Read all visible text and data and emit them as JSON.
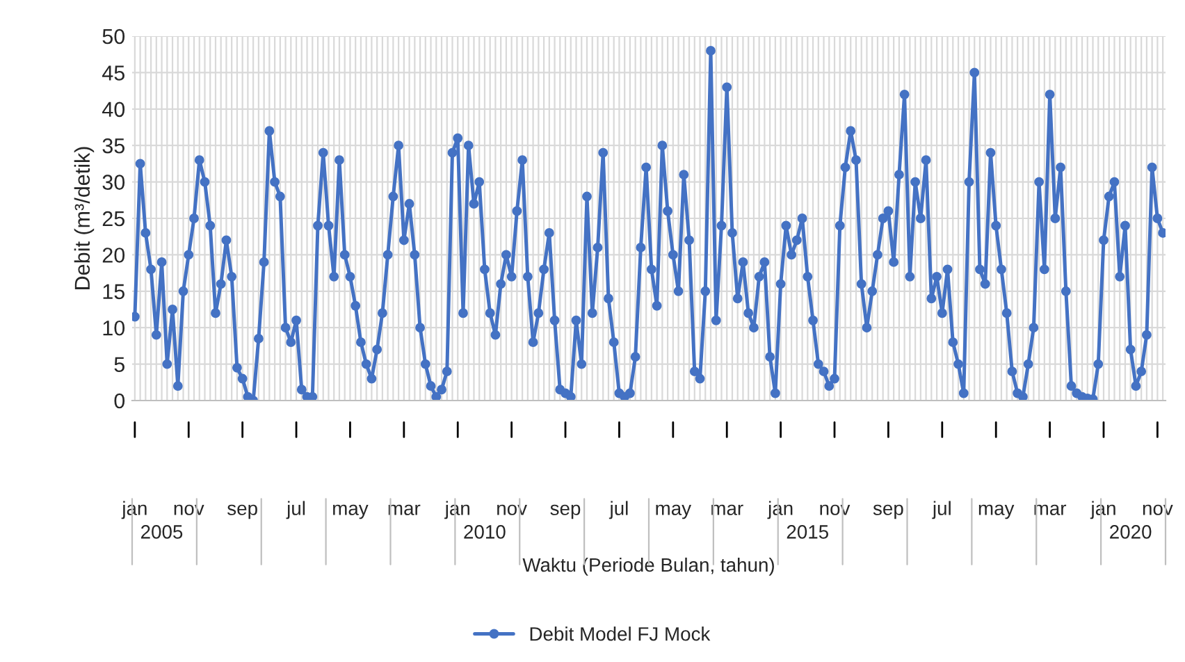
{
  "chart_data": {
    "type": "line",
    "xlabel": "Waktu (Periode Bulan, tahun)",
    "ylabel": "Debit (m³/detik)",
    "categories": [
      "jan",
      null,
      null,
      null,
      null,
      null,
      null,
      null,
      null,
      null,
      "nov",
      null,
      null,
      null,
      null,
      null,
      null,
      null,
      null,
      null,
      "sep",
      null,
      null,
      null,
      null,
      null,
      null,
      null,
      null,
      null,
      "jul",
      null,
      null,
      null,
      null,
      null,
      null,
      null,
      null,
      null,
      "may",
      null,
      null,
      null,
      null,
      null,
      null,
      null,
      null,
      null,
      "mar",
      null,
      null,
      null,
      null,
      null,
      null,
      null,
      null,
      null,
      "jan",
      null,
      null,
      null,
      null,
      null,
      null,
      null,
      null,
      null,
      "nov",
      null,
      null,
      null,
      null,
      null,
      null,
      null,
      null,
      null,
      "sep",
      null,
      null,
      null,
      null,
      null,
      null,
      null,
      null,
      null,
      "jul",
      null,
      null,
      null,
      null,
      null,
      null,
      null,
      null,
      null,
      "may",
      null,
      null,
      null,
      null,
      null,
      null,
      null,
      null,
      null,
      "mar",
      null,
      null,
      null,
      null,
      null,
      null,
      null,
      null,
      null,
      "jan",
      null,
      null,
      null,
      null,
      null,
      null,
      null,
      null,
      null,
      "nov",
      null,
      null,
      null,
      null,
      null,
      null,
      null,
      null,
      null,
      "sep",
      null,
      null,
      null,
      null,
      null,
      null,
      null,
      null,
      null,
      "jul",
      null,
      null,
      null,
      null,
      null,
      null,
      null,
      null,
      null,
      "may",
      null,
      null,
      null,
      null,
      null,
      null,
      null,
      null,
      null,
      "mar",
      null,
      null,
      null,
      null,
      null,
      null,
      null,
      null,
      null,
      "jan",
      null,
      null,
      null,
      null,
      null,
      null,
      null,
      null,
      null,
      "nov",
      null
    ],
    "series": [
      {
        "name": "Debit Model FJ Mock",
        "color": "#4472c4",
        "values": [
          11.5,
          32.5,
          23,
          18,
          9,
          19,
          5,
          12.5,
          2,
          15,
          20,
          25,
          33,
          30,
          24,
          12,
          16,
          22,
          17,
          4.5,
          3,
          0.5,
          0,
          8.5,
          19,
          37,
          30,
          28,
          10,
          8,
          11,
          1.5,
          0.5,
          0.5,
          24,
          34,
          24,
          17,
          33,
          20,
          17,
          13,
          8,
          5,
          3,
          7,
          12,
          20,
          28,
          35,
          22,
          27,
          20,
          10,
          5,
          2,
          0.5,
          1.5,
          4,
          34,
          36,
          12,
          35,
          27,
          30,
          18,
          12,
          9,
          16,
          20,
          17,
          26,
          33,
          17,
          8,
          12,
          18,
          23,
          11,
          1.5,
          1,
          0.5,
          11,
          5,
          28,
          12,
          21,
          34,
          14,
          8,
          1,
          0.5,
          1,
          6,
          21,
          32,
          18,
          13,
          35,
          26,
          20,
          15,
          31,
          22,
          4,
          3,
          15,
          48,
          11,
          24,
          43,
          23,
          14,
          19,
          12,
          10,
          17,
          19,
          6,
          1,
          16,
          24,
          20,
          22,
          25,
          17,
          11,
          5,
          4,
          2,
          3,
          24,
          32,
          37,
          33,
          16,
          10,
          15,
          20,
          25,
          26,
          19,
          31,
          42,
          17,
          30,
          25,
          33,
          14,
          17,
          12,
          18,
          8,
          5,
          1,
          30,
          45,
          18,
          16,
          34,
          24,
          18,
          12,
          4,
          1,
          0.5,
          5,
          10,
          30,
          18,
          42,
          25,
          32,
          15,
          2,
          1,
          0.5,
          0.3,
          0.2,
          5,
          22,
          28,
          30,
          17,
          24,
          7,
          2,
          4,
          9,
          32,
          25,
          23
        ]
      }
    ],
    "ylim": [
      0,
      50
    ],
    "yticks": [
      0,
      5,
      10,
      15,
      20,
      25,
      30,
      35,
      40,
      45,
      50
    ],
    "annotations": [
      "2005",
      "2010",
      "2015",
      "2020"
    ],
    "grid": true,
    "legend": "bottom",
    "marker": "circle",
    "line_style": "solid"
  }
}
